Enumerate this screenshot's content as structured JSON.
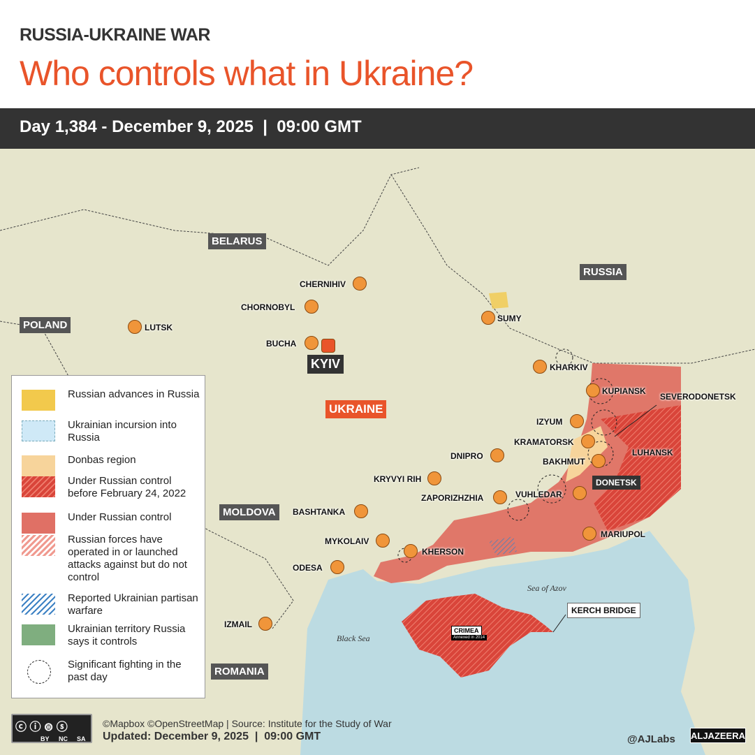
{
  "header": {
    "kicker": "RUSSIA-UKRAINE WAR",
    "title": "Who controls what in Ukraine?",
    "day_bar": "Day 1,384 - December 9, 2025  |  09:00 GMT"
  },
  "countries": {
    "belarus": "BELARUS",
    "russia": "RUSSIA",
    "poland": "POLAND",
    "ukraine": "UKRAINE",
    "moldova": "MOLDOVA",
    "romania": "ROMANIA"
  },
  "seas": {
    "azov": "Sea of Azov",
    "black": "Black Sea"
  },
  "cities": {
    "chernihiv": "CHERNIHIV",
    "chornobyl": "CHORNOBYL",
    "lutsk": "LUTSK",
    "bucha": "BUCHA",
    "kyiv": "KYIV",
    "sumy": "SUMY",
    "kharkiv": "KHARKIV",
    "kupiansk": "KUPIANSK",
    "severodonetsk": "SEVERODONETSK",
    "izyum": "IZYUM",
    "kramatorsk": "KRAMATORSK",
    "bakhmut": "BAKHMUT",
    "luhansk": "LUHANSK",
    "dnipro": "DNIPRO",
    "kryvyi_rih": "KRYVYI RIH",
    "donetsk": "DONETSK",
    "zaporizhzhia": "ZAPORIZHZHIA",
    "vuhledar": "VUHLEDAR",
    "bashtanka": "BASHTANKA",
    "mariupol": "MARIUPOL",
    "mykolaiv": "MYKOLAIV",
    "kherson": "KHERSON",
    "odesa": "ODESA",
    "izmail": "IZMAIL",
    "kerch_bridge": "KERCH BRIDGE",
    "crimea": "CRIMEA",
    "crimea_note": "Annexed in 2014"
  },
  "legend": [
    {
      "label": "Russian advances in Russia",
      "color": "#f2c94c"
    },
    {
      "label": "Ukrainian incursion into Russia",
      "color": "#cfe9f7"
    },
    {
      "label": "Donbas region",
      "color": "#f7d49b"
    },
    {
      "label": "Under Russian control before February 24, 2022",
      "color": "#e05a4a"
    },
    {
      "label": "Under Russian control",
      "color": "#e07065"
    },
    {
      "label": "Russian forces have operated in or launched attacks against but do not control",
      "color": "#f09a90"
    },
    {
      "label": "Reported Ukrainian partisan warfare",
      "color": "#3d82c4"
    },
    {
      "label": "Ukrainian territory Russia says it controls",
      "color": "#7fae7f"
    },
    {
      "label": "Significant fighting in the past day",
      "color": "#222222"
    }
  ],
  "footer": {
    "credits": "©Mapbox ©OpenStreetMap | Source: Institute for the Study of War",
    "updated": "Updated: December 9, 2025  |  09:00 GMT",
    "handle": "@AJLabs",
    "logo": "ALJAZEERA",
    "license": [
      "BY",
      "NC",
      "SA"
    ]
  }
}
